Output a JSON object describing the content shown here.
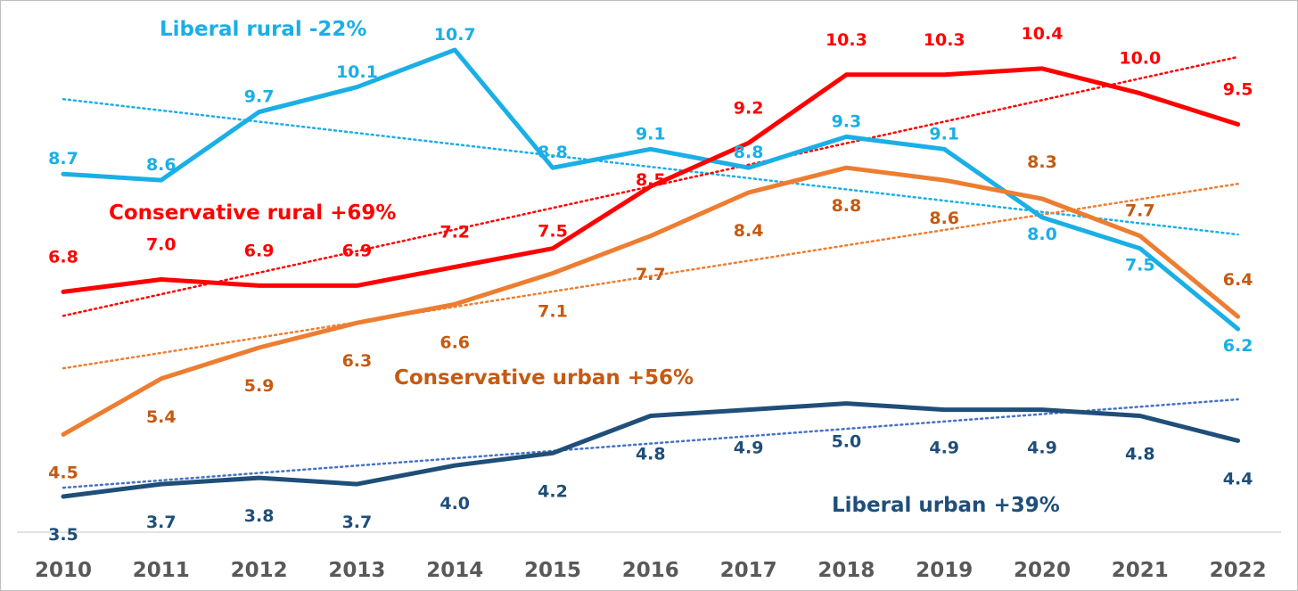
{
  "chart_data": {
    "type": "line",
    "categories": [
      "2010",
      "2011",
      "2012",
      "2013",
      "2014",
      "2015",
      "2016",
      "2017",
      "2018",
      "2019",
      "2020",
      "2021",
      "2022"
    ],
    "grid": false,
    "legend": "none",
    "trendlines": true,
    "series": [
      {
        "id": "liberal_rural",
        "name": "Liberal rural  -22%",
        "color": "#1aafe6",
        "values": [
          8.7,
          8.6,
          9.7,
          10.1,
          10.7,
          8.8,
          9.1,
          8.8,
          9.3,
          9.1,
          8.0,
          7.5,
          6.2
        ],
        "labels": [
          "8.7",
          "8.6",
          "9.7",
          "10.1",
          "10.7",
          "8.8",
          "9.1",
          "8.8",
          "9.3",
          "9.1",
          "8.0",
          "7.5",
          "6.2"
        ]
      },
      {
        "id": "conservative_rural",
        "name": "Conservative rural +69%",
        "color": "#ff0000",
        "values": [
          6.8,
          7.0,
          6.9,
          6.9,
          7.2,
          7.5,
          8.5,
          9.2,
          10.3,
          10.3,
          10.4,
          10.0,
          9.5
        ],
        "labels": [
          "6.8",
          "7.0",
          "6.9",
          "6.9",
          "7.2",
          "7.5",
          "8.5",
          "9.2",
          "10.3",
          "10.3",
          "10.4",
          "10.0",
          "9.5"
        ]
      },
      {
        "id": "conservative_urban",
        "name": "Conservative urban  +56%",
        "color": "#ed7d31",
        "label_color": "#c55a11",
        "values": [
          4.5,
          5.4,
          5.9,
          6.3,
          6.6,
          7.1,
          7.7,
          8.4,
          8.8,
          8.6,
          8.3,
          7.7,
          6.4
        ],
        "labels": [
          "4.5",
          "5.4",
          "5.9",
          "6.3",
          "6.6",
          "7.1",
          "7.7",
          "8.4",
          "8.8",
          "8.6",
          "8.3",
          "7.7",
          "6.4"
        ]
      },
      {
        "id": "liberal_urban",
        "name": "Liberal urban +39%",
        "color": "#1f4e79",
        "trend_color": "#4472c4",
        "values": [
          3.5,
          3.7,
          3.8,
          3.7,
          4.0,
          4.2,
          4.8,
          4.9,
          5.0,
          4.9,
          4.9,
          4.8,
          4.4
        ],
        "labels": [
          "3.5",
          "3.7",
          "3.8",
          "3.7",
          "4.0",
          "4.2",
          "4.8",
          "4.9",
          "5.0",
          "4.9",
          "4.9",
          "4.8",
          "4.4"
        ]
      }
    ]
  }
}
